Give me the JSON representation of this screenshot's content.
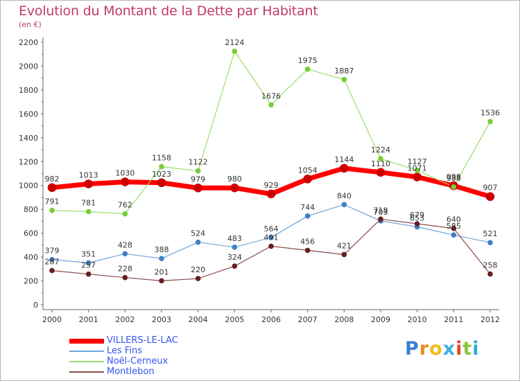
{
  "title": "Evolution du Montant de la Dette par Habitant",
  "subtitle": "(en €)",
  "logo": {
    "letters": [
      "P",
      "r",
      "o",
      "x",
      "i",
      "t",
      "i"
    ],
    "colors": [
      "#3a7fd5",
      "#ec8a1e",
      "#f1bb1c",
      "#3bb0e6",
      "#e8452c",
      "#8cc63e",
      "#2fa7d9"
    ]
  },
  "chart_data": {
    "type": "line",
    "title": "Evolution du Montant de la Dette par Habitant",
    "subtitle": "(en €)",
    "x": [
      "2000",
      "2001",
      "2002",
      "2003",
      "2004",
      "2005",
      "2006",
      "2007",
      "2008",
      "2009",
      "2010",
      "2011",
      "2012"
    ],
    "ylim": [
      0,
      2200
    ],
    "yticks": [
      "0",
      "200",
      "400",
      "600",
      "800",
      "1000",
      "1200",
      "1400",
      "1600",
      "1800",
      "2000",
      "2200"
    ],
    "grid": false,
    "legend_position": "bottom-left",
    "series": [
      {
        "name": "VILLERS-LE-LAC",
        "color": "#ff0000",
        "point_color": "#cc0000",
        "width": 7,
        "marker_r": 6,
        "values": [
          982,
          1013,
          1030,
          1023,
          979,
          980,
          929,
          1054,
          1144,
          1110,
          1071,
          998,
          907
        ]
      },
      {
        "name": "Les Fins",
        "color": "#6fa3d8",
        "point_color": "#3f7fc4",
        "width": 1.2,
        "marker_r": 3.5,
        "values": [
          379,
          351,
          428,
          388,
          524,
          483,
          564,
          744,
          840,
          703,
          653,
          585,
          521
        ]
      },
      {
        "name": "Noël-Cerneux",
        "color": "#99dd66",
        "point_color": "#77cc33",
        "width": 1.2,
        "marker_r": 3.5,
        "values": [
          791,
          781,
          762,
          1158,
          1122,
          2124,
          1676,
          1975,
          1887,
          1224,
          1127,
          988,
          1536
        ]
      },
      {
        "name": "Montlebon",
        "color": "#8a4a4a",
        "point_color": "#661f1f",
        "width": 1.2,
        "marker_r": 3.5,
        "values": [
          287,
          257,
          228,
          201,
          220,
          324,
          491,
          456,
          421,
          718,
          679,
          640,
          258
        ]
      }
    ],
    "data_labels": {
      "VILLERS-LE-LAC": [
        "982",
        "1013",
        "1030",
        "1023",
        "979",
        "980",
        "929",
        "1054",
        "1144",
        "1110",
        "1071",
        "998",
        "907"
      ],
      "Les Fins": [
        "379",
        "351",
        "428",
        "388",
        "524",
        "483",
        "564",
        "744",
        "840",
        "703",
        "653",
        "585",
        "521"
      ],
      "Noël-Cerneux": [
        "791",
        "781",
        "762",
        "1158",
        "1122",
        "2124",
        "1676",
        "1975",
        "1887",
        "1224",
        "1127",
        "988",
        "1536"
      ],
      "Montlebon": [
        "287",
        "257",
        "228",
        "201",
        "220",
        "324",
        "491",
        "456",
        "421",
        "718",
        "679",
        "640",
        "258"
      ]
    }
  }
}
